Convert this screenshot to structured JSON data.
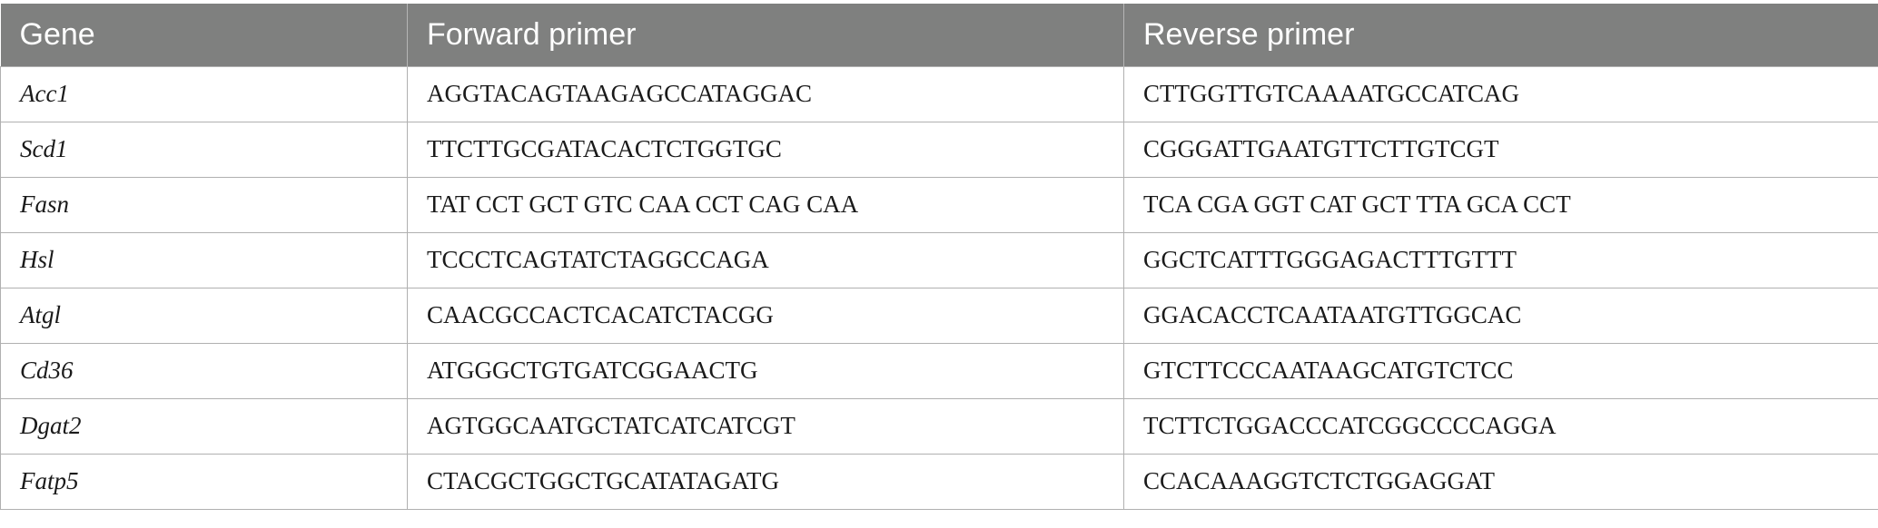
{
  "table": {
    "headers": [
      "Gene",
      "Forward primer",
      "Reverse primer"
    ],
    "rows": [
      {
        "gene": "Acc1",
        "forward": "AGGTACAGTAAGAGCCATAGGAC",
        "reverse": "CTTGGTTGTCAAAATGCCATCAG"
      },
      {
        "gene": "Scd1",
        "forward": "TTCTTGCGATACACTCTGGTGC",
        "reverse": "CGGGATTGAATGTTCTTGTCGT"
      },
      {
        "gene": "Fasn",
        "forward": "TAT CCT GCT GTC CAA CCT CAG CAA",
        "reverse": "TCA CGA GGT CAT GCT TTA GCA CCT"
      },
      {
        "gene": "Hsl",
        "forward": "TCCCTCAGTATCTAGGCCAGA",
        "reverse": "GGCTCATTTGGGAGACTTTGTTT"
      },
      {
        "gene": "Atgl",
        "forward": "CAACGCCACTCACATCTACGG",
        "reverse": "GGACACCTCAATAATGTTGGCAC"
      },
      {
        "gene": "Cd36",
        "forward": "ATGGGCTGTGATCGGAACTG",
        "reverse": "GTCTTCCCAATAAGCATGTCTCC"
      },
      {
        "gene": "Dgat2",
        "forward": "AGTGGCAATGCTATCATCATCGT",
        "reverse": "TCTTCTGGACCCATCGGCCCCAGGA"
      },
      {
        "gene": "Fatp5",
        "forward": "CTACGCTGGCTGCATATAGATG",
        "reverse": "CCACAAAGGTCTCTGGAGGAT"
      }
    ]
  }
}
